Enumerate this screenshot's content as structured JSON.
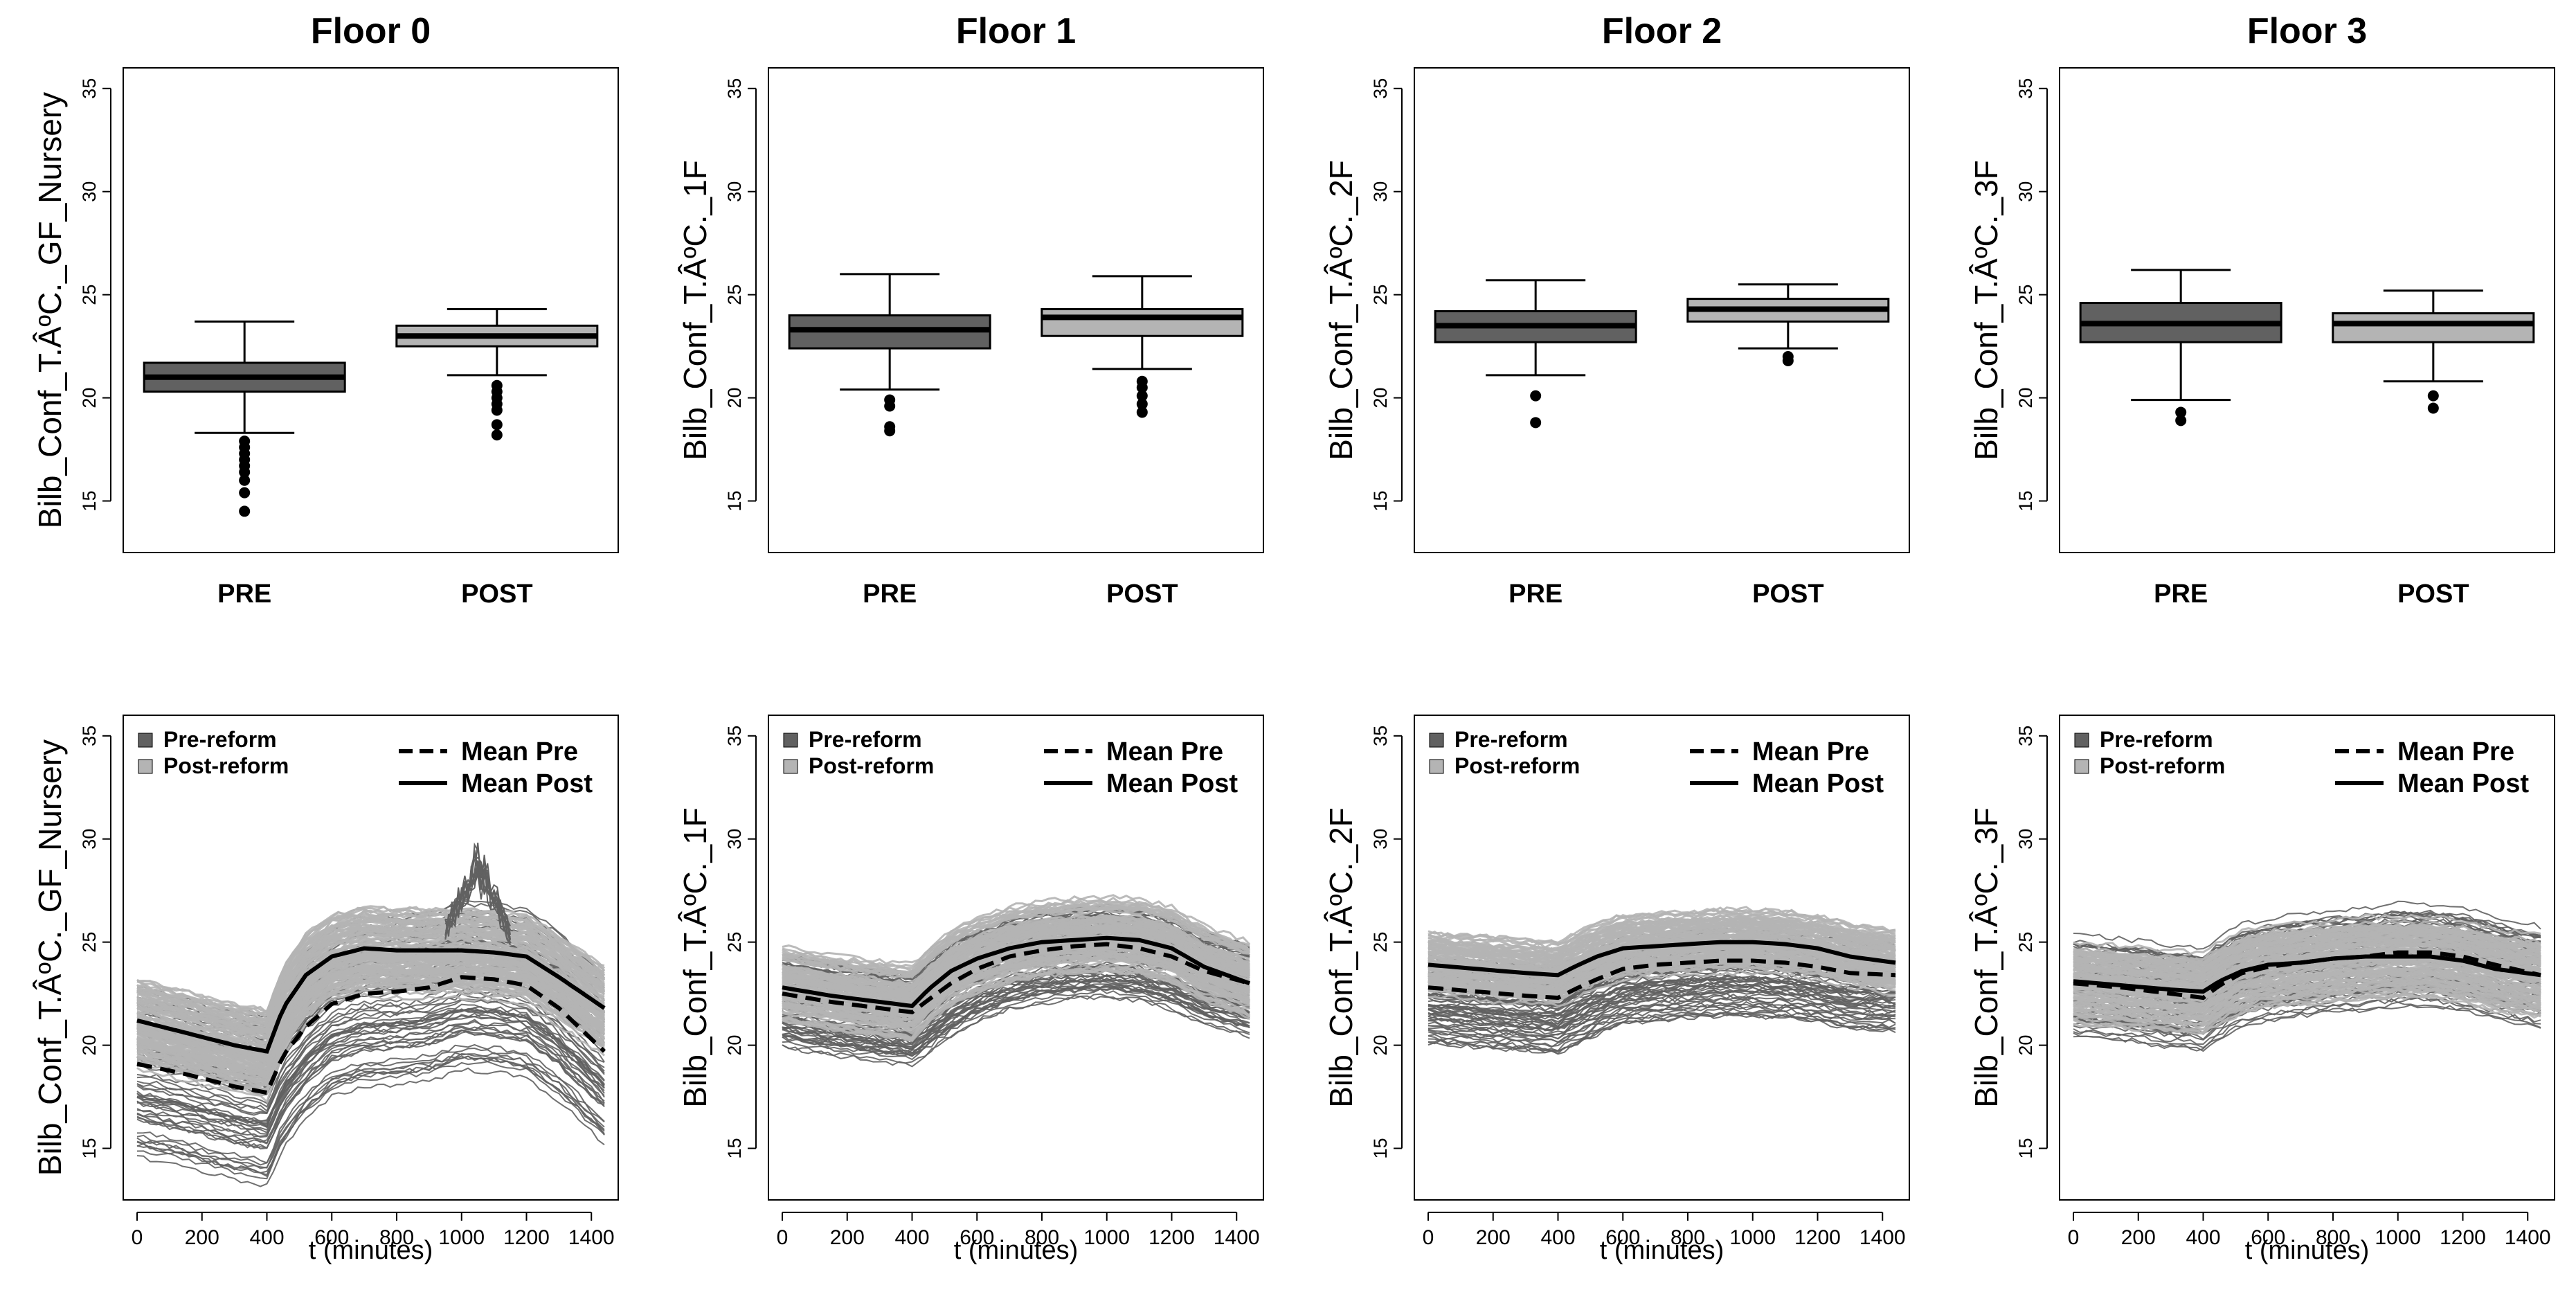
{
  "chart_data": [
    {
      "type": "box",
      "title": "Floor 0",
      "ylabel": "Bilb_Conf_T.ÂºC._GF_Nursery",
      "ylim": [
        12.5,
        36
      ],
      "yticks": [
        15,
        20,
        25,
        30,
        35
      ],
      "categories": [
        "PRE",
        "POST"
      ],
      "colors": [
        "#616161",
        "#b4b4b4"
      ],
      "boxes": [
        {
          "name": "PRE",
          "whisker_low": 18.3,
          "q1": 20.3,
          "median": 21.0,
          "q3": 21.7,
          "whisker_high": 23.7,
          "outliers": [
            17.9,
            17.6,
            17.3,
            17.0,
            16.7,
            16.4,
            16.0,
            15.4,
            14.5
          ]
        },
        {
          "name": "POST",
          "whisker_low": 21.1,
          "q1": 22.5,
          "median": 23.0,
          "q3": 23.5,
          "whisker_high": 24.3,
          "outliers": [
            20.6,
            20.3,
            20.0,
            19.7,
            19.4,
            18.7,
            18.2
          ]
        }
      ]
    },
    {
      "type": "box",
      "title": "Floor 1",
      "ylabel": "Bilb_Conf_T.ÂºC._1F",
      "ylim": [
        12.5,
        36
      ],
      "yticks": [
        15,
        20,
        25,
        30,
        35
      ],
      "categories": [
        "PRE",
        "POST"
      ],
      "colors": [
        "#616161",
        "#b4b4b4"
      ],
      "boxes": [
        {
          "name": "PRE",
          "whisker_low": 20.4,
          "q1": 22.4,
          "median": 23.3,
          "q3": 24.0,
          "whisker_high": 26.0,
          "outliers": [
            19.9,
            19.6,
            18.6,
            18.4
          ]
        },
        {
          "name": "POST",
          "whisker_low": 21.4,
          "q1": 23.0,
          "median": 23.9,
          "q3": 24.3,
          "whisker_high": 25.9,
          "outliers": [
            20.8,
            20.5,
            20.1,
            19.7,
            19.3
          ]
        }
      ]
    },
    {
      "type": "box",
      "title": "Floor 2",
      "ylabel": "Bilb_Conf_T.ÂºC._2F",
      "ylim": [
        12.5,
        36
      ],
      "yticks": [
        15,
        20,
        25,
        30,
        35
      ],
      "categories": [
        "PRE",
        "POST"
      ],
      "colors": [
        "#616161",
        "#b4b4b4"
      ],
      "boxes": [
        {
          "name": "PRE",
          "whisker_low": 21.1,
          "q1": 22.7,
          "median": 23.5,
          "q3": 24.2,
          "whisker_high": 25.7,
          "outliers": [
            20.1,
            18.8
          ]
        },
        {
          "name": "POST",
          "whisker_low": 22.4,
          "q1": 23.7,
          "median": 24.3,
          "q3": 24.8,
          "whisker_high": 25.5,
          "outliers": [
            22.0,
            21.8
          ]
        }
      ]
    },
    {
      "type": "box",
      "title": "Floor 3",
      "ylabel": "Bilb_Conf_T.ÂºC._3F",
      "ylim": [
        12.5,
        36
      ],
      "yticks": [
        15,
        20,
        25,
        30,
        35
      ],
      "categories": [
        "PRE",
        "POST"
      ],
      "colors": [
        "#616161",
        "#b4b4b4"
      ],
      "boxes": [
        {
          "name": "PRE",
          "whisker_low": 19.9,
          "q1": 22.7,
          "median": 23.6,
          "q3": 24.6,
          "whisker_high": 26.2,
          "outliers": [
            19.3,
            18.9
          ]
        },
        {
          "name": "POST",
          "whisker_low": 20.8,
          "q1": 22.7,
          "median": 23.6,
          "q3": 24.1,
          "whisker_high": 25.2,
          "outliers": [
            20.1,
            19.5
          ]
        }
      ]
    },
    {
      "type": "line",
      "xlabel": "t (minutes)",
      "ylabel": "Bilb_Conf_T.ÂºC._GF_Nursery",
      "xlim": [
        0,
        1440
      ],
      "ylim": [
        12.5,
        36
      ],
      "xticks": [
        0,
        200,
        400,
        600,
        800,
        1000,
        1200,
        1400
      ],
      "yticks": [
        15,
        20,
        25,
        30,
        35
      ],
      "legend": {
        "pre_label": "Pre-reform",
        "post_label": "Post-reform",
        "mean_pre_label": "Mean Pre",
        "mean_post_label": "Mean Post",
        "pre_color": "#616161",
        "post_color": "#b4b4b4"
      },
      "mean_pre": [
        [
          0,
          19.1
        ],
        [
          150,
          18.6
        ],
        [
          300,
          18.0
        ],
        [
          400,
          17.7
        ],
        [
          450,
          19.5
        ],
        [
          520,
          20.9
        ],
        [
          600,
          22.0
        ],
        [
          700,
          22.5
        ],
        [
          800,
          22.6
        ],
        [
          900,
          22.8
        ],
        [
          1000,
          23.3
        ],
        [
          1100,
          23.2
        ],
        [
          1200,
          22.9
        ],
        [
          1300,
          21.8
        ],
        [
          1440,
          19.7
        ]
      ],
      "mean_post": [
        [
          0,
          21.2
        ],
        [
          150,
          20.6
        ],
        [
          300,
          20.0
        ],
        [
          400,
          19.7
        ],
        [
          450,
          21.8
        ],
        [
          520,
          23.4
        ],
        [
          600,
          24.3
        ],
        [
          700,
          24.7
        ],
        [
          800,
          24.6
        ],
        [
          900,
          24.6
        ],
        [
          1000,
          24.6
        ],
        [
          1100,
          24.5
        ],
        [
          1200,
          24.3
        ],
        [
          1300,
          23.3
        ],
        [
          1440,
          21.8
        ]
      ],
      "pre_band": {
        "center_shift": -0.5,
        "spread": 3.6
      },
      "post_band": {
        "center_shift": -0.2,
        "spread": 1.9
      },
      "spike": {
        "t_range": [
          950,
          1150
        ],
        "peak": 29.6
      }
    },
    {
      "type": "line",
      "xlabel": "t (minutes)",
      "ylabel": "Bilb_Conf_T.ÂºC._1F",
      "xlim": [
        0,
        1440
      ],
      "ylim": [
        12.5,
        36
      ],
      "xticks": [
        0,
        200,
        400,
        600,
        800,
        1000,
        1200,
        1400
      ],
      "yticks": [
        15,
        20,
        25,
        30,
        35
      ],
      "legend": {
        "pre_label": "Pre-reform",
        "post_label": "Post-reform",
        "mean_pre_label": "Mean Pre",
        "mean_post_label": "Mean Post",
        "pre_color": "#616161",
        "post_color": "#b4b4b4"
      },
      "mean_pre": [
        [
          0,
          22.5
        ],
        [
          150,
          22.1
        ],
        [
          300,
          21.8
        ],
        [
          400,
          21.6
        ],
        [
          450,
          22.2
        ],
        [
          520,
          23.0
        ],
        [
          600,
          23.7
        ],
        [
          700,
          24.3
        ],
        [
          800,
          24.6
        ],
        [
          900,
          24.8
        ],
        [
          1000,
          24.9
        ],
        [
          1100,
          24.7
        ],
        [
          1200,
          24.3
        ],
        [
          1300,
          23.6
        ],
        [
          1440,
          23.0
        ]
      ],
      "mean_post": [
        [
          0,
          22.8
        ],
        [
          150,
          22.4
        ],
        [
          300,
          22.1
        ],
        [
          400,
          21.9
        ],
        [
          450,
          22.7
        ],
        [
          520,
          23.6
        ],
        [
          600,
          24.2
        ],
        [
          700,
          24.7
        ],
        [
          800,
          25.0
        ],
        [
          900,
          25.1
        ],
        [
          1000,
          25.2
        ],
        [
          1100,
          25.1
        ],
        [
          1200,
          24.7
        ],
        [
          1300,
          23.8
        ],
        [
          1440,
          23.0
        ]
      ],
      "pre_band": {
        "center_shift": -0.3,
        "spread": 2.2
      },
      "post_band": {
        "center_shift": 0.2,
        "spread": 1.5
      },
      "spike": null
    },
    {
      "type": "line",
      "xlabel": "t (minutes)",
      "ylabel": "Bilb_Conf_T.ÂºC._2F",
      "xlim": [
        0,
        1440
      ],
      "ylim": [
        12.5,
        36
      ],
      "xticks": [
        0,
        200,
        400,
        600,
        800,
        1000,
        1200,
        1400
      ],
      "yticks": [
        15,
        20,
        25,
        30,
        35
      ],
      "legend": {
        "pre_label": "Pre-reform",
        "post_label": "Post-reform",
        "mean_pre_label": "Mean Pre",
        "mean_post_label": "Mean Post",
        "pre_color": "#616161",
        "post_color": "#b4b4b4"
      },
      "mean_pre": [
        [
          0,
          22.8
        ],
        [
          150,
          22.6
        ],
        [
          300,
          22.4
        ],
        [
          400,
          22.3
        ],
        [
          450,
          22.7
        ],
        [
          520,
          23.2
        ],
        [
          600,
          23.7
        ],
        [
          700,
          23.9
        ],
        [
          800,
          24.0
        ],
        [
          900,
          24.1
        ],
        [
          1000,
          24.1
        ],
        [
          1100,
          24.0
        ],
        [
          1200,
          23.8
        ],
        [
          1300,
          23.5
        ],
        [
          1440,
          23.4
        ]
      ],
      "mean_post": [
        [
          0,
          23.9
        ],
        [
          150,
          23.7
        ],
        [
          300,
          23.5
        ],
        [
          400,
          23.4
        ],
        [
          450,
          23.8
        ],
        [
          520,
          24.3
        ],
        [
          600,
          24.7
        ],
        [
          700,
          24.8
        ],
        [
          800,
          24.9
        ],
        [
          900,
          25.0
        ],
        [
          1000,
          25.0
        ],
        [
          1100,
          24.9
        ],
        [
          1200,
          24.7
        ],
        [
          1300,
          24.3
        ],
        [
          1440,
          24.0
        ]
      ],
      "pre_band": {
        "center_shift": -0.6,
        "spread": 2.0
      },
      "post_band": {
        "center_shift": 0.1,
        "spread": 1.3
      },
      "spike": null
    },
    {
      "type": "line",
      "xlabel": "t (minutes)",
      "ylabel": "Bilb_Conf_T.ÂºC._3F",
      "xlim": [
        0,
        1440
      ],
      "ylim": [
        12.5,
        36
      ],
      "xticks": [
        0,
        200,
        400,
        600,
        800,
        1000,
        1200,
        1400
      ],
      "yticks": [
        15,
        20,
        25,
        30,
        35
      ],
      "legend": {
        "pre_label": "Pre-reform",
        "post_label": "Post-reform",
        "mean_pre_label": "Mean Pre",
        "mean_post_label": "Mean Post",
        "pre_color": "#616161",
        "post_color": "#b4b4b4"
      },
      "mean_pre": [
        [
          0,
          23.0
        ],
        [
          150,
          22.8
        ],
        [
          300,
          22.5
        ],
        [
          400,
          22.3
        ],
        [
          450,
          22.9
        ],
        [
          520,
          23.5
        ],
        [
          600,
          23.8
        ],
        [
          700,
          24.0
        ],
        [
          800,
          24.2
        ],
        [
          900,
          24.3
        ],
        [
          1000,
          24.5
        ],
        [
          1100,
          24.5
        ],
        [
          1200,
          24.3
        ],
        [
          1300,
          23.9
        ],
        [
          1440,
          23.4
        ]
      ],
      "mean_post": [
        [
          0,
          23.1
        ],
        [
          150,
          22.9
        ],
        [
          300,
          22.7
        ],
        [
          400,
          22.6
        ],
        [
          450,
          23.1
        ],
        [
          520,
          23.6
        ],
        [
          600,
          23.9
        ],
        [
          700,
          24.0
        ],
        [
          800,
          24.2
        ],
        [
          900,
          24.3
        ],
        [
          1000,
          24.3
        ],
        [
          1100,
          24.3
        ],
        [
          1200,
          24.1
        ],
        [
          1300,
          23.7
        ],
        [
          1440,
          23.4
        ]
      ],
      "pre_band": {
        "center_shift": 0.0,
        "spread": 2.3
      },
      "post_band": {
        "center_shift": 0.0,
        "spread": 1.8
      },
      "spike": null
    }
  ],
  "titles": [
    "Floor 0",
    "Floor 1",
    "Floor 2",
    "Floor 3"
  ]
}
